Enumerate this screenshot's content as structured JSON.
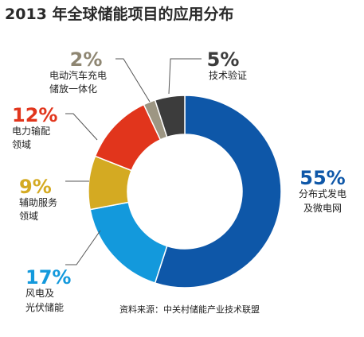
{
  "chart_data": {
    "type": "pie",
    "title": "2013 年全球储能项目的应用分布",
    "source": "资料来源：中关村储能产业技术联盟",
    "slices": [
      {
        "id": "dist",
        "pct_label": "55%",
        "value": 55,
        "label_lines": [
          "分布式发电",
          "及微电网"
        ],
        "color": "#0e57a8",
        "text_color": "#0e57a8"
      },
      {
        "id": "wind",
        "pct_label": "17%",
        "value": 17,
        "label_lines": [
          "风电及",
          "光伏储能"
        ],
        "color": "#1399dc",
        "text_color": "#1399dc"
      },
      {
        "id": "aux",
        "pct_label": "9%",
        "value": 9,
        "label_lines": [
          "辅助服务",
          "领域"
        ],
        "color": "#d4aa22",
        "text_color": "#d4aa22"
      },
      {
        "id": "power",
        "pct_label": "12%",
        "value": 12,
        "label_lines": [
          "电力输配",
          "领域"
        ],
        "color": "#e1351c",
        "text_color": "#e1351c"
      },
      {
        "id": "ev",
        "pct_label": "2%",
        "value": 2,
        "label_lines": [
          "电动汽车充电",
          "储放一体化"
        ],
        "color": "#9d9683",
        "text_color": "#8e8672"
      },
      {
        "id": "tech",
        "pct_label": "5%",
        "value": 5,
        "label_lines": [
          "技术验证"
        ],
        "color": "#3c3c3c",
        "text_color": "#3c3c3c"
      }
    ]
  }
}
